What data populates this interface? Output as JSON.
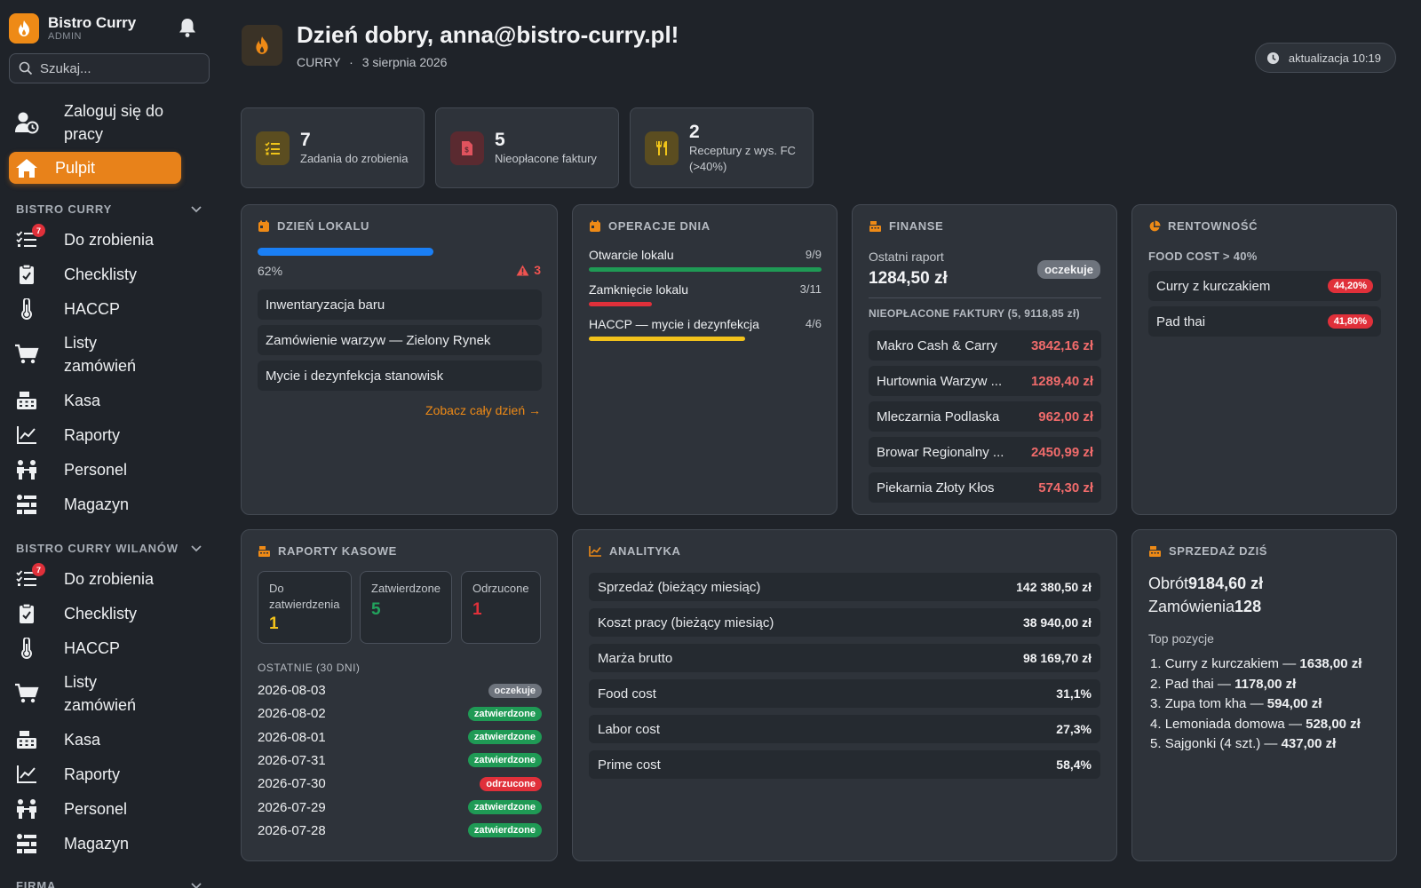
{
  "app": {
    "name": "Bistro Curry",
    "role": "ADMIN"
  },
  "search": {
    "placeholder": "Szukaj..."
  },
  "nav": {
    "login": "Zaloguj się do pracy",
    "dashboard": "Pulpit"
  },
  "sections": [
    {
      "title": "BISTRO CURRY",
      "items": [
        {
          "label": "Do zrobienia",
          "badge": "7"
        },
        {
          "label": "Checklisty"
        },
        {
          "label": "HACCP"
        },
        {
          "label": "Listy zamówień"
        },
        {
          "label": "Kasa"
        },
        {
          "label": "Raporty"
        },
        {
          "label": "Personel"
        },
        {
          "label": "Magazyn"
        }
      ]
    },
    {
      "title": "BISTRO CURRY WILANÓW",
      "items": [
        {
          "label": "Do zrobienia",
          "badge": "7"
        },
        {
          "label": "Checklisty"
        },
        {
          "label": "HACCP"
        },
        {
          "label": "Listy zamówień"
        },
        {
          "label": "Kasa"
        },
        {
          "label": "Raporty"
        },
        {
          "label": "Personel"
        },
        {
          "label": "Magazyn"
        }
      ]
    },
    {
      "title": "FIRMA"
    }
  ],
  "header": {
    "greeting": "Dzień dobry, anna@bistro-curry.pl!",
    "location": "CURRY",
    "date": "3 sierpnia 2026",
    "update": "aktualizacja 10:19"
  },
  "stats": [
    {
      "value": "7",
      "label": "Zadania do zrobienia"
    },
    {
      "value": "5",
      "label": "Nieopłacone faktury"
    },
    {
      "value": "2",
      "label": "Receptury z wys. FC (>40%)"
    }
  ],
  "day": {
    "title": "DZIEŃ LOKALU",
    "progress_text": "62%",
    "progress": 0.62,
    "alerts": "3",
    "tasks": [
      "Inwentaryzacja baru",
      "Zamówienie warzyw — Zielony Rynek",
      "Mycie i dezynfekcja stanowisk"
    ],
    "link": "Zobacz cały dzień →"
  },
  "ops": {
    "title": "OPERACJE DNIA",
    "rows": [
      {
        "label": "Otwarcie lokalu",
        "count": "9/9",
        "fraction": 1.0,
        "color": "#1f9a55"
      },
      {
        "label": "Zamknięcie lokalu",
        "count": "3/11",
        "fraction": 0.27,
        "color": "#e0303a"
      },
      {
        "label": "HACCP — mycie i dezynfekcja",
        "count": "4/6",
        "fraction": 0.67,
        "color": "#f2c21b"
      }
    ]
  },
  "finance": {
    "title": "FINANSE",
    "last_report_label": "Ostatni raport",
    "last_report_value": "1284,50 zł",
    "last_report_status": "oczekuje",
    "unpaid_title": "NIEOPŁACONE FAKTURY (5, 9118,85 zł)",
    "invoices": [
      {
        "name": "Makro Cash & Carry",
        "amount": "3842,16 zł"
      },
      {
        "name": "Hurtownia Warzyw ...",
        "amount": "1289,40 zł"
      },
      {
        "name": "Mleczarnia Podlaska",
        "amount": "962,00 zł"
      },
      {
        "name": "Browar Regionalny ...",
        "amount": "2450,99 zł"
      },
      {
        "name": "Piekarnia Złoty Kłos",
        "amount": "574,30 zł"
      }
    ]
  },
  "profit": {
    "title": "RENTOWNOŚĆ",
    "subtitle": "FOOD COST > 40%",
    "items": [
      {
        "name": "Curry z kurczakiem",
        "pct": "44,20%"
      },
      {
        "name": "Pad thai",
        "pct": "41,80%"
      }
    ]
  },
  "cash": {
    "title": "RAPORTY KASOWE",
    "boxes": [
      {
        "label": "Do zatwierdzenia",
        "value": "1",
        "color": "#f2c21b"
      },
      {
        "label": "Zatwierdzone",
        "value": "5",
        "color": "#22a35d"
      },
      {
        "label": "Odrzucone",
        "value": "1",
        "color": "#e0303a"
      }
    ],
    "recent_title": "OSTATNIE (30 DNI)",
    "reports": [
      {
        "date": "2026-08-03",
        "status": "oczekuje",
        "kind": "grey"
      },
      {
        "date": "2026-08-02",
        "status": "zatwierdzone",
        "kind": "green"
      },
      {
        "date": "2026-08-01",
        "status": "zatwierdzone",
        "kind": "green"
      },
      {
        "date": "2026-07-31",
        "status": "zatwierdzone",
        "kind": "green"
      },
      {
        "date": "2026-07-30",
        "status": "odrzucone",
        "kind": "red"
      },
      {
        "date": "2026-07-29",
        "status": "zatwierdzone",
        "kind": "green"
      },
      {
        "date": "2026-07-28",
        "status": "zatwierdzone",
        "kind": "green"
      }
    ]
  },
  "analytics": {
    "title": "ANALITYKA",
    "rows": [
      {
        "label": "Sprzedaż (bieżący miesiąc)",
        "value": "142 380,50 zł"
      },
      {
        "label": "Koszt pracy (bieżący miesiąc)",
        "value": "38 940,00 zł"
      },
      {
        "label": "Marża brutto",
        "value": "98 169,70 zł"
      },
      {
        "label": "Food cost",
        "value": "31,1%"
      },
      {
        "label": "Labor cost",
        "value": "27,3%"
      },
      {
        "label": "Prime cost",
        "value": "58,4%"
      }
    ]
  },
  "sales": {
    "title": "SPRZEDAŻ DZIŚ",
    "turnover_label": "Obrót",
    "turnover": "9184,60 zł",
    "orders_label": "Zamówienia",
    "orders": "128",
    "top_title": "Top pozycje",
    "top": [
      {
        "rank": "1.",
        "name": "Curry z kurczakiem —",
        "value": "1638,00 zł"
      },
      {
        "rank": "2.",
        "name": "Pad thai —",
        "value": "1178,00 zł"
      },
      {
        "rank": "3.",
        "name": "Zupa tom kha —",
        "value": "594,00 zł"
      },
      {
        "rank": "4.",
        "name": "Lemoniada domowa —",
        "value": "528,00 zł"
      },
      {
        "rank": "5.",
        "name": "Sajgonki (4 szt.) —",
        "value": "437,00 zł"
      }
    ]
  }
}
